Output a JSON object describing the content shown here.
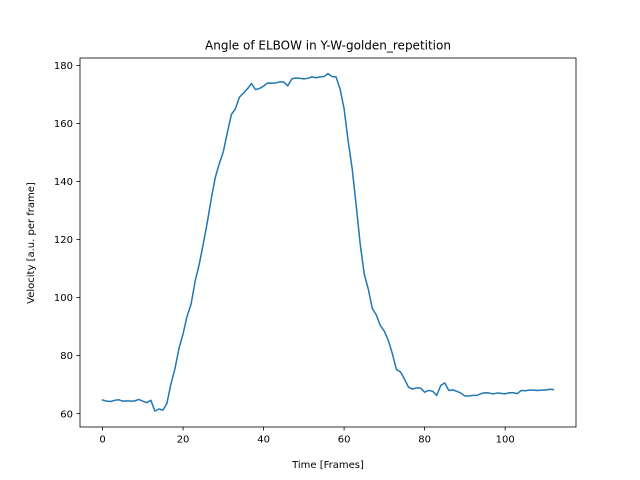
{
  "chart_data": {
    "type": "line",
    "title": "Angle of ELBOW in Y-W-golden_repetition",
    "xlabel": "Time [Frames]",
    "ylabel": "Velocity [a.u. per frame]",
    "xlim": [
      -5.6,
      117.6
    ],
    "ylim": [
      55.4,
      182.6
    ],
    "xticks": [
      0,
      20,
      40,
      60,
      80,
      100
    ],
    "yticks": [
      60,
      80,
      100,
      120,
      140,
      160,
      180
    ],
    "grid": false,
    "legend": "none",
    "series": [
      {
        "color": "#1f77b4",
        "x": [
          0,
          1,
          2,
          3,
          4,
          5,
          6,
          7,
          8,
          9,
          10,
          11,
          12,
          13,
          14,
          15,
          16,
          17,
          18,
          19,
          20,
          21,
          22,
          23,
          24,
          25,
          26,
          27,
          28,
          29,
          30,
          31,
          32,
          33,
          34,
          35,
          36,
          37,
          38,
          39,
          40,
          41,
          42,
          43,
          44,
          45,
          46,
          47,
          48,
          49,
          50,
          51,
          52,
          53,
          54,
          55,
          56,
          57,
          58,
          59,
          60,
          61,
          62,
          63,
          64,
          65,
          66,
          67,
          68,
          69,
          70,
          71,
          72,
          73,
          74,
          75,
          76,
          77,
          78,
          79,
          80,
          81,
          82,
          83,
          84,
          85,
          86,
          87,
          88,
          89,
          90,
          91,
          92,
          93,
          94,
          95,
          96,
          97,
          98,
          99,
          100,
          101,
          102,
          103,
          104,
          105,
          106,
          107,
          108,
          109,
          110,
          111,
          112
        ],
        "values": [
          64.7,
          64.3,
          64.2,
          64.6,
          64.8,
          64.3,
          64.4,
          64.3,
          64.4,
          64.9,
          64.3,
          63.8,
          64.6,
          60.9,
          61.6,
          61.2,
          63.6,
          70.3,
          75.6,
          82.6,
          87.5,
          93.6,
          97.8,
          105.7,
          111.4,
          118.4,
          125.8,
          134.1,
          141.4,
          146.2,
          150.3,
          156.9,
          163.1,
          165.1,
          169.1,
          170.5,
          172.0,
          173.8,
          171.7,
          172.1,
          172.9,
          174.0,
          173.9,
          174.0,
          174.4,
          174.3,
          173.0,
          175.4,
          175.7,
          175.6,
          175.4,
          175.6,
          176.1,
          175.8,
          176.1,
          176.2,
          177.2,
          176.2,
          176.1,
          171.9,
          165.1,
          154.1,
          144.5,
          131.8,
          118.4,
          108.1,
          103.0,
          96.3,
          94.0,
          90.4,
          88.4,
          85.2,
          80.6,
          75.2,
          74.4,
          71.9,
          69.1,
          68.5,
          68.9,
          68.8,
          67.4,
          68.0,
          67.7,
          66.3,
          69.7,
          70.6,
          68.0,
          68.2,
          67.7,
          67.1,
          66.1,
          66.1,
          66.3,
          66.3,
          66.9,
          67.2,
          67.1,
          66.8,
          67.1,
          67.0,
          66.8,
          67.2,
          67.2,
          66.9,
          68.0,
          67.9,
          68.1,
          68.1,
          68.0,
          68.1,
          68.1,
          68.4,
          68.3
        ]
      }
    ]
  }
}
